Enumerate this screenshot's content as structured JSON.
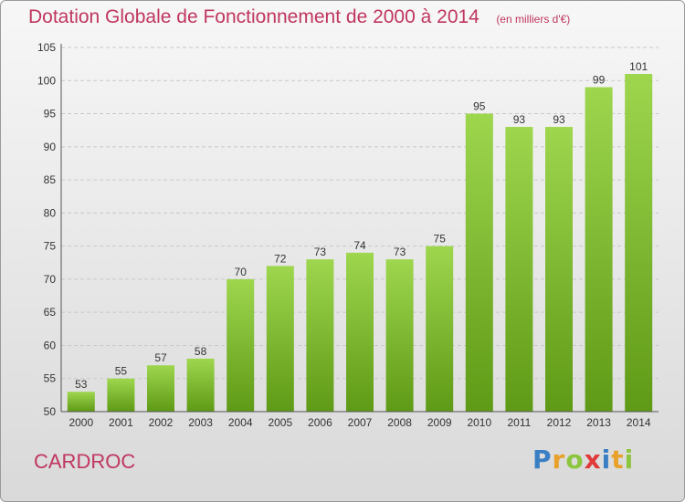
{
  "title": "Dotation Globale de Fonctionnement de 2000 à 2014",
  "unit": "(en milliers d'€)",
  "commune": "CARDROC",
  "logo": {
    "text": "Proxiti",
    "letters": [
      {
        "char": "P",
        "color": "#3a7fc4"
      },
      {
        "char": "r",
        "color": "#e8a12b"
      },
      {
        "char": "o",
        "color": "#8cc63f"
      },
      {
        "char": "x",
        "color": "#e03a3a"
      },
      {
        "char": "i",
        "color": "#3a7fc4"
      },
      {
        "char": "t",
        "color": "#e8a12b"
      },
      {
        "char": "i",
        "color": "#8cc63f"
      }
    ]
  },
  "colors": {
    "bar_top": "#9ed64e",
    "bar_bottom": "#5f9a16",
    "title": "#c0365f",
    "grid": "#c8c8c8"
  },
  "chart_data": {
    "type": "bar",
    "title": "Dotation Globale de Fonctionnement de 2000 à 2014",
    "subtitle": "(en milliers d'€)",
    "categories": [
      "2000",
      "2001",
      "2002",
      "2003",
      "2004",
      "2005",
      "2006",
      "2007",
      "2008",
      "2009",
      "2010",
      "2011",
      "2012",
      "2013",
      "2014"
    ],
    "values": [
      53,
      55,
      57,
      58,
      70,
      72,
      73,
      74,
      73,
      75,
      95,
      93,
      93,
      99,
      101
    ],
    "ylim": [
      50,
      105
    ],
    "yticks": [
      50,
      55,
      60,
      65,
      70,
      75,
      80,
      85,
      90,
      95,
      100,
      105
    ],
    "grid": true
  }
}
